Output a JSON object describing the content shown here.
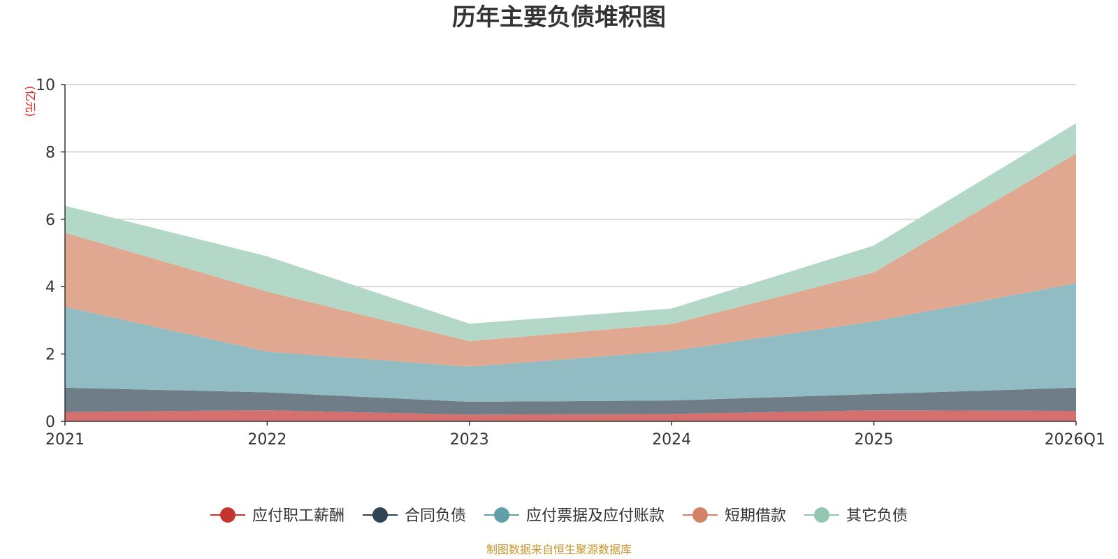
{
  "chart_data": {
    "type": "area",
    "stacked": true,
    "title": "历年主要负债堆积图",
    "unit_label": "(亿元)",
    "categories": [
      "2021",
      "2022",
      "2023",
      "2024",
      "2025",
      "2026Q1"
    ],
    "ylim": [
      0,
      10
    ],
    "yticks": [
      "0",
      "2",
      "4",
      "6",
      "8",
      "10"
    ],
    "grid": true,
    "legend_position": "bottom",
    "series": [
      {
        "name": "应付职工薪酬",
        "values": [
          0.28,
          0.33,
          0.2,
          0.22,
          0.33,
          0.31
        ],
        "line_color": "#c23531",
        "fill_color": "#d4716f"
      },
      {
        "name": "合同负债",
        "values": [
          0.72,
          0.53,
          0.38,
          0.4,
          0.48,
          0.69
        ],
        "line_color": "#2f4554",
        "fill_color": "#6f7d89"
      },
      {
        "name": "应付票据及应付账款",
        "values": [
          2.4,
          1.21,
          1.04,
          1.47,
          2.16,
          3.1
        ],
        "line_color": "#61a0a8",
        "fill_color": "#91bcc3"
      },
      {
        "name": "短期借款",
        "values": [
          2.2,
          1.78,
          0.76,
          0.8,
          1.45,
          3.85
        ],
        "line_color": "#d48265",
        "fill_color": "#e0a891"
      },
      {
        "name": "其它负债",
        "values": [
          0.8,
          1.05,
          0.52,
          0.46,
          0.8,
          0.9
        ],
        "line_color": "#91c7ae",
        "fill_color": "#b3d8c7"
      }
    ],
    "source": "制图数据来自恒生聚源数据库",
    "source_color": "#c8952a",
    "unit_color": "#e8191d",
    "axis_color": "#333333",
    "grid_color": "#cccccc"
  }
}
